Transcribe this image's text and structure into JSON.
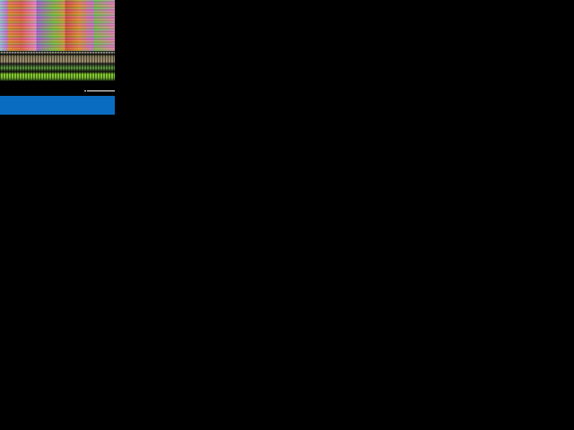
{
  "colors": {
    "background": "#000000",
    "bottom_bar": "#0a6cc0",
    "line": "#ffffff"
  },
  "state": "corrupted-display"
}
